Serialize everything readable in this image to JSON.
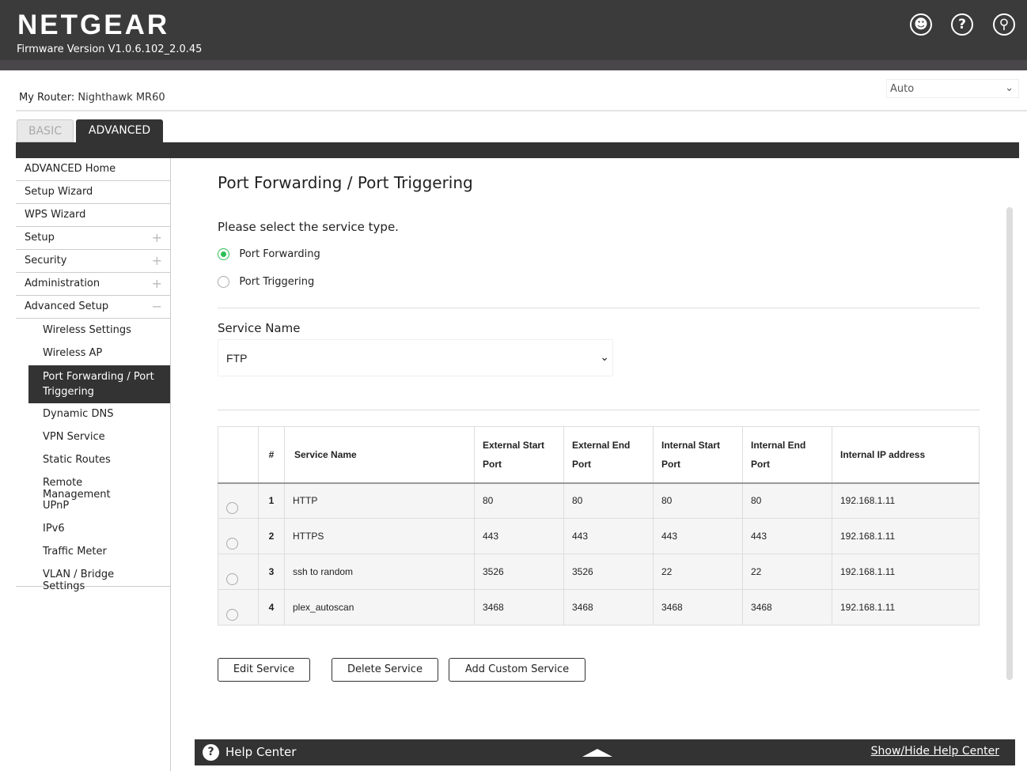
{
  "header": {
    "logo": "NETGEAR",
    "firmware": "Firmware Version V1.0.6.102_2.0.45",
    "icons": [
      "user-icon",
      "help-icon",
      "search-icon"
    ]
  },
  "router": {
    "label": "My Router:",
    "name": "Nighthawk MR60"
  },
  "language": {
    "selected": "Auto"
  },
  "tabs": [
    {
      "label": "BASIC",
      "active": false
    },
    {
      "label": "ADVANCED",
      "active": true
    }
  ],
  "sidebar": {
    "items": [
      "ADVANCED Home",
      "Setup Wizard",
      "WPS Wizard",
      "Setup",
      "Security",
      "Administration",
      "Advanced Setup"
    ],
    "sub": [
      "Wireless Settings",
      "Wireless AP",
      "Port Forwarding / Port Triggering",
      "Dynamic DNS",
      "VPN Service",
      "Static Routes",
      "Remote Management",
      "UPnP",
      "IPv6",
      "Traffic Meter",
      "VLAN / Bridge Settings"
    ]
  },
  "main": {
    "title": "Port Forwarding / Port Triggering",
    "prompt": "Please select the service type.",
    "options": [
      {
        "label": "Port Forwarding",
        "selected": true
      },
      {
        "label": "Port Triggering",
        "selected": false
      }
    ],
    "service_name_label": "Service Name",
    "service_name_value": "FTP",
    "table": {
      "headers": [
        "",
        "#",
        "Service Name",
        "External Start Port",
        "External End Port",
        "Internal Start Port",
        "Internal End Port",
        "Internal IP address"
      ],
      "rows": [
        [
          "1",
          "HTTP",
          "80",
          "80",
          "80",
          "80",
          "192.168.1.11"
        ],
        [
          "2",
          "HTTPS",
          "443",
          "443",
          "443",
          "443",
          "192.168.1.11"
        ],
        [
          "3",
          "ssh to random",
          "3526",
          "3526",
          "22",
          "22",
          "192.168.1.11"
        ],
        [
          "4",
          "plex_autoscan",
          "3468",
          "3468",
          "3468",
          "3468",
          "192.168.1.11"
        ]
      ]
    },
    "buttons": {
      "edit": "Edit Service",
      "delete": "Delete Service",
      "add": "Add Custom Service"
    }
  },
  "help": {
    "title": "Help Center",
    "toggle": "Show/Hide Help Center"
  }
}
